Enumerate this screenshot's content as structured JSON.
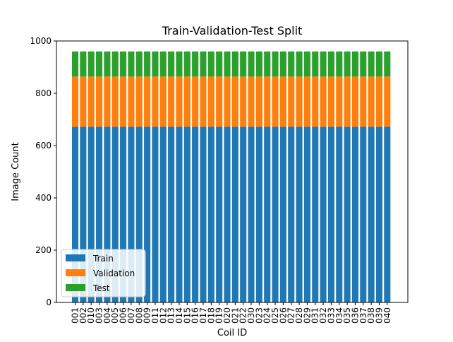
{
  "chart_data": {
    "type": "bar",
    "stacked": true,
    "title": "Train-Validation-Test Split",
    "xlabel": "Coil ID",
    "ylabel": "Image Count",
    "ylim": [
      0,
      1000
    ],
    "yticks": [
      0,
      200,
      400,
      600,
      800,
      1000
    ],
    "grid": false,
    "legend_position": "lower-left",
    "categories": [
      "001",
      "002",
      "010",
      "003",
      "004",
      "005",
      "006",
      "007",
      "008",
      "009",
      "011",
      "012",
      "013",
      "014",
      "015",
      "016",
      "017",
      "018",
      "019",
      "020",
      "021",
      "022",
      "030",
      "023",
      "024",
      "025",
      "026",
      "027",
      "028",
      "029",
      "031",
      "032",
      "033",
      "034",
      "035",
      "036",
      "037",
      "038",
      "039",
      "040"
    ],
    "series": [
      {
        "name": "Train",
        "color": "#1f77b4",
        "values": [
          672,
          672,
          672,
          672,
          672,
          672,
          672,
          672,
          672,
          672,
          672,
          672,
          672,
          672,
          672,
          672,
          672,
          672,
          672,
          672,
          672,
          672,
          672,
          672,
          672,
          672,
          672,
          672,
          672,
          672,
          672,
          672,
          672,
          672,
          672,
          672,
          672,
          672,
          672,
          672
        ]
      },
      {
        "name": "Validation",
        "color": "#ff7f0e",
        "values": [
          192,
          192,
          192,
          192,
          192,
          192,
          192,
          192,
          192,
          192,
          192,
          192,
          192,
          192,
          192,
          192,
          192,
          192,
          192,
          192,
          192,
          192,
          192,
          192,
          192,
          192,
          192,
          192,
          192,
          192,
          192,
          192,
          192,
          192,
          192,
          192,
          192,
          192,
          192,
          192
        ]
      },
      {
        "name": "Test",
        "color": "#2ca02c",
        "values": [
          96,
          96,
          96,
          96,
          96,
          96,
          96,
          96,
          96,
          96,
          96,
          96,
          96,
          96,
          96,
          96,
          96,
          96,
          96,
          96,
          96,
          96,
          96,
          96,
          96,
          96,
          96,
          96,
          96,
          96,
          96,
          96,
          96,
          96,
          96,
          96,
          96,
          96,
          96,
          96
        ]
      }
    ]
  }
}
